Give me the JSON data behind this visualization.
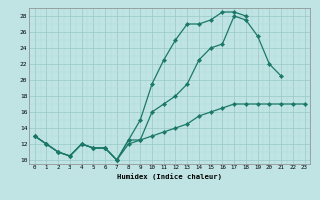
{
  "xlabel": "Humidex (Indice chaleur)",
  "bg_color": "#c0e4e4",
  "grid_color_major": "#98c8c8",
  "grid_color_minor": "#b0d8d8",
  "line_color": "#1a7868",
  "xlim": [
    -0.5,
    23.5
  ],
  "ylim": [
    9.5,
    29.0
  ],
  "xticks": [
    0,
    1,
    2,
    3,
    4,
    5,
    6,
    7,
    8,
    9,
    10,
    11,
    12,
    13,
    14,
    15,
    16,
    17,
    18,
    19,
    20,
    21,
    22,
    23
  ],
  "yticks": [
    10,
    12,
    14,
    16,
    18,
    20,
    22,
    24,
    26,
    28
  ],
  "line1_x": [
    0,
    1,
    2,
    3,
    4,
    5,
    6,
    7,
    8,
    9,
    10,
    11,
    12,
    13,
    14,
    15,
    16,
    17,
    18
  ],
  "line1_y": [
    13,
    12,
    11,
    10.5,
    12,
    11.5,
    11.5,
    10,
    12.5,
    15,
    19.5,
    22.5,
    25,
    27,
    27,
    27.5,
    28.5,
    28.5,
    28
  ],
  "line2_x": [
    0,
    1,
    2,
    3,
    4,
    5,
    6,
    7,
    8,
    9,
    10,
    11,
    12,
    13,
    14,
    15,
    16,
    17,
    18,
    19,
    20,
    21
  ],
  "line2_y": [
    13,
    12,
    11,
    10.5,
    12,
    11.5,
    11.5,
    10,
    12.5,
    12.5,
    16,
    17,
    18,
    19.5,
    22.5,
    24,
    24.5,
    28,
    27.5,
    25.5,
    22,
    20.5
  ],
  "line3_x": [
    0,
    1,
    2,
    3,
    4,
    5,
    6,
    7,
    8,
    9,
    10,
    11,
    12,
    13,
    14,
    15,
    16,
    17,
    18,
    19,
    20,
    21,
    22,
    23
  ],
  "line3_y": [
    13,
    12,
    11,
    10.5,
    12,
    11.5,
    11.5,
    10,
    12,
    12.5,
    13,
    13.5,
    14,
    14.5,
    15.5,
    16,
    16.5,
    17,
    17,
    17,
    17,
    17,
    17,
    17
  ]
}
